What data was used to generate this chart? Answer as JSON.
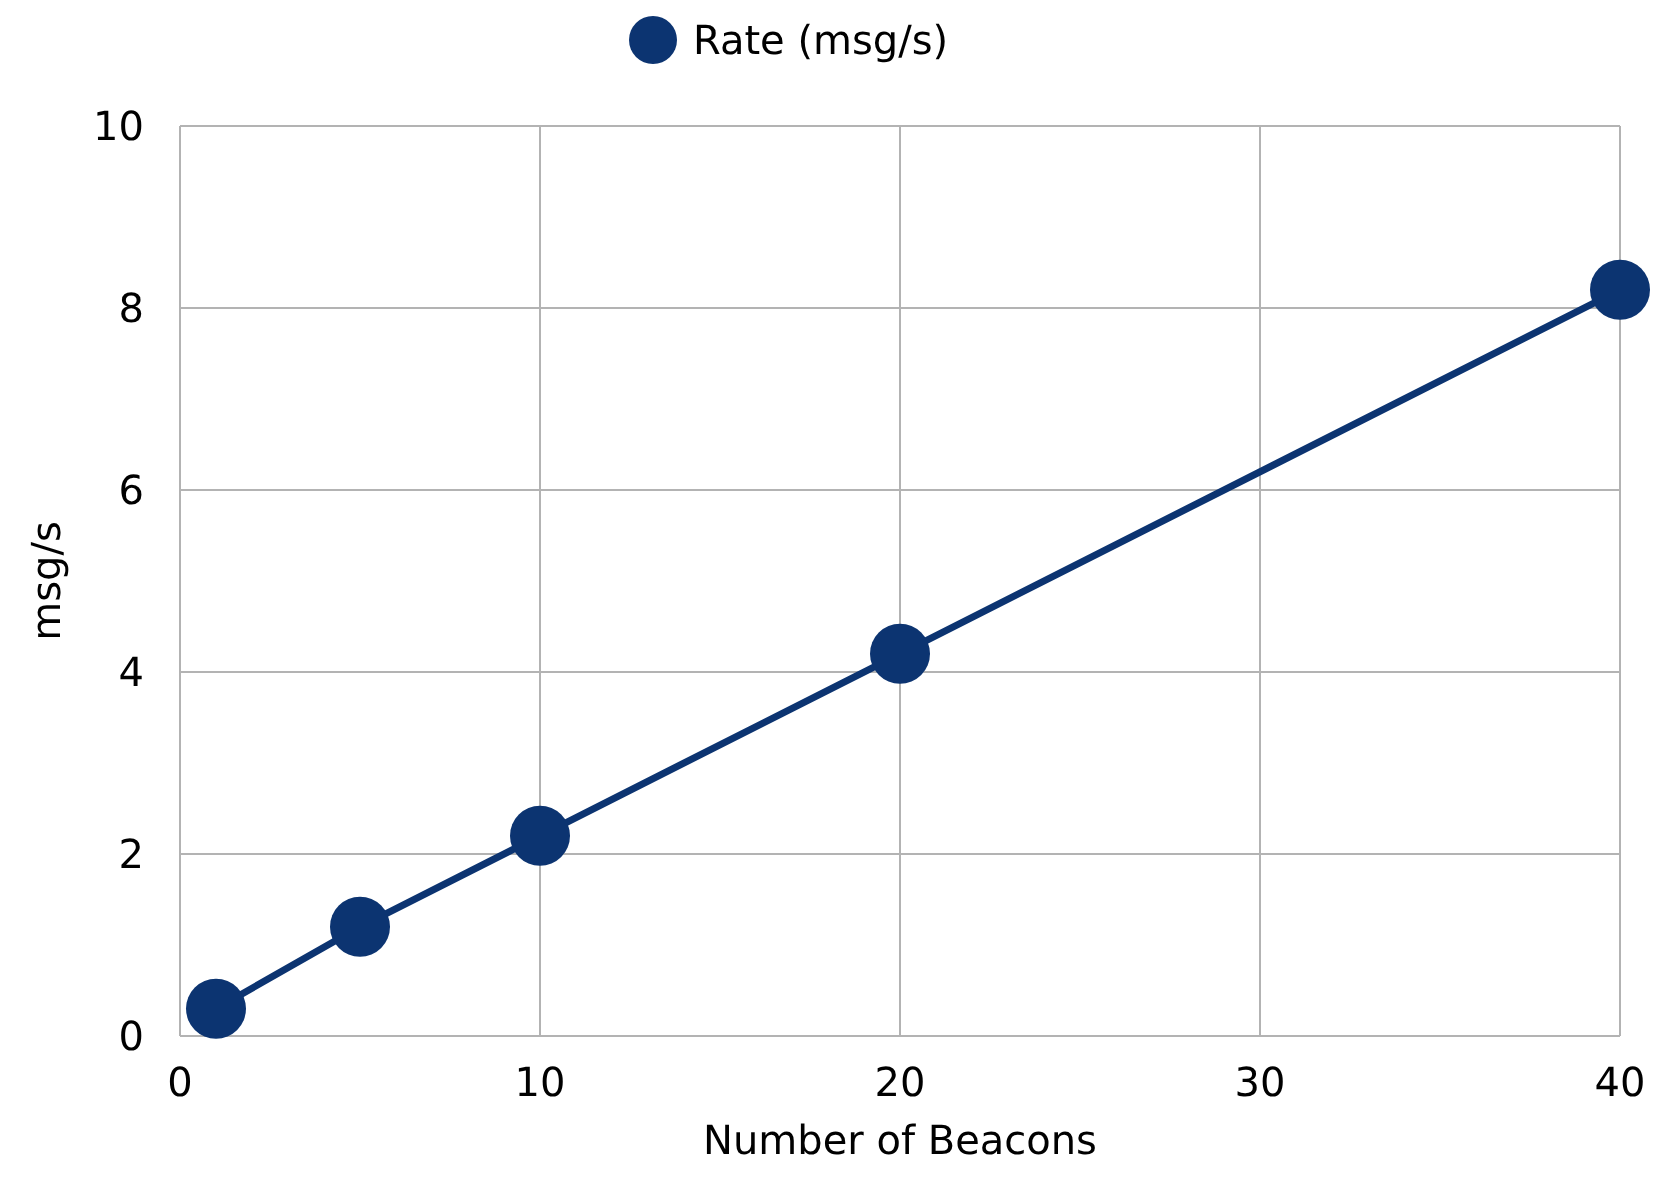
{
  "chart_data": {
    "type": "line",
    "xlabel": "Number of Beacons",
    "ylabel": "msg/s",
    "x": [
      1,
      5,
      10,
      20,
      40
    ],
    "series": [
      {
        "name": "Rate (msg/s)",
        "color": "#0c3471",
        "values": [
          0.3,
          1.2,
          2.2,
          4.2,
          8.2
        ]
      }
    ],
    "xlim": [
      0,
      40
    ],
    "xticks": [
      0,
      10,
      20,
      30,
      40
    ],
    "ylim": [
      0,
      10
    ],
    "yticks": [
      0,
      2,
      4,
      6,
      8,
      10
    ],
    "grid": true,
    "legend": "top",
    "marker": "circle",
    "line_style": "solid"
  }
}
